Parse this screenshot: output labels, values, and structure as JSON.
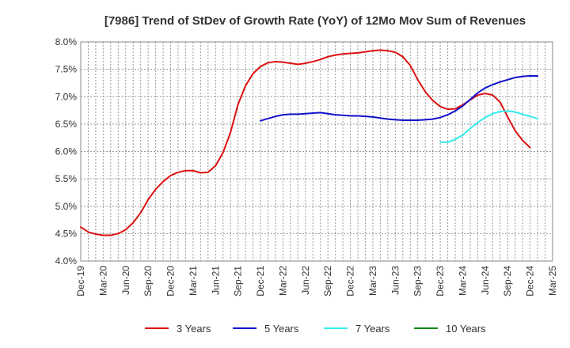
{
  "chart_data": {
    "type": "line",
    "title": "[7986]  Trend of StDev of Growth Rate (YoY) of 12Mo Mov Sum of Revenues",
    "xlabel": "",
    "ylabel": "",
    "ylim": [
      4.0,
      8.0
    ],
    "yticks": [
      "8.0%",
      "7.5%",
      "7.0%",
      "6.5%",
      "6.0%",
      "5.5%",
      "5.0%",
      "4.5%",
      "4.0%"
    ],
    "ytick_values": [
      8.0,
      7.5,
      7.0,
      6.5,
      6.0,
      5.5,
      5.0,
      4.5,
      4.0
    ],
    "xticks": [
      "Dec-19",
      "Mar-20",
      "Jun-20",
      "Sep-20",
      "Dec-20",
      "Mar-21",
      "Jun-21",
      "Sep-21",
      "Dec-21",
      "Mar-22",
      "Jun-22",
      "Sep-22",
      "Dec-22",
      "Mar-23",
      "Jun-23",
      "Sep-23",
      "Dec-23",
      "Mar-24",
      "Jun-24",
      "Sep-24",
      "Dec-24",
      "Mar-25"
    ],
    "grid": true,
    "legend_position": "bottom",
    "series": [
      {
        "name": "3 Years",
        "color": "#dd1111",
        "start_index": 0,
        "values": [
          4.62,
          4.53,
          4.49,
          4.47,
          4.47,
          4.5,
          4.57,
          4.7,
          4.88,
          5.12,
          5.31,
          5.45,
          5.56,
          5.62,
          5.65,
          5.65,
          5.61,
          5.62,
          5.74,
          5.98,
          6.35,
          6.86,
          7.2,
          7.42,
          7.55,
          7.62,
          7.64,
          7.63,
          7.61,
          7.59,
          7.61,
          7.64,
          7.68,
          7.73,
          7.76,
          7.78,
          7.79,
          7.8,
          7.82,
          7.84,
          7.85,
          7.84,
          7.81,
          7.73,
          7.57,
          7.31,
          7.09,
          6.93,
          6.82,
          6.77,
          6.78,
          6.85,
          6.94,
          7.03,
          7.06,
          7.03,
          6.9,
          6.63,
          6.38,
          6.2,
          6.07
        ]
      },
      {
        "name": "5 Years",
        "color": "#1111cc",
        "start_index": 24,
        "values": [
          6.56,
          6.6,
          6.64,
          6.67,
          6.68,
          6.68,
          6.69,
          6.7,
          6.71,
          6.69,
          6.67,
          6.66,
          6.65,
          6.65,
          6.64,
          6.63,
          6.61,
          6.59,
          6.58,
          6.57,
          6.57,
          6.57,
          6.58,
          6.59,
          6.62,
          6.67,
          6.74,
          6.83,
          6.95,
          7.07,
          7.16,
          7.22,
          7.27,
          7.31,
          7.35,
          7.37,
          7.38,
          7.38
        ]
      },
      {
        "name": "7 Years",
        "color": "#33eeee",
        "start_index": 48,
        "values": [
          6.17,
          6.17,
          6.22,
          6.3,
          6.42,
          6.53,
          6.62,
          6.69,
          6.73,
          6.74,
          6.72,
          6.68,
          6.64,
          6.6
        ]
      },
      {
        "name": "10 Years",
        "color": "#118811",
        "start_index": 0,
        "values": []
      }
    ]
  }
}
